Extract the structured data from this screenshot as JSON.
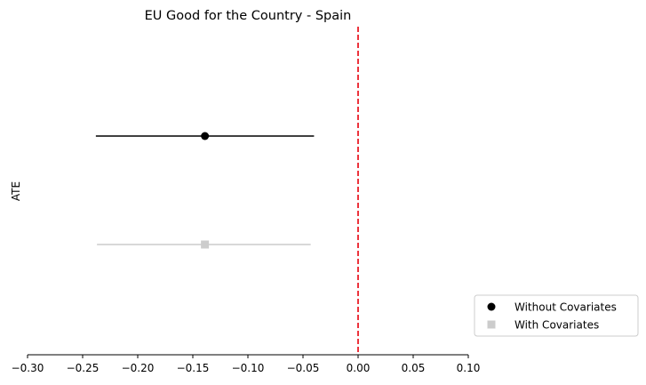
{
  "chart_data": {
    "type": "scatter",
    "title": "EU Good for the Country - Spain",
    "xlabel": "",
    "ylabel": "ATE",
    "xlim": [
      -0.3,
      0.1
    ],
    "xticks": [
      "−0.30",
      "−0.25",
      "−0.20",
      "−0.15",
      "−0.10",
      "−0.05",
      "0.00",
      "0.05",
      "0.10"
    ],
    "reference_line": {
      "x": 0.0,
      "color": "#e8000b",
      "style": "dashed"
    },
    "grid": false,
    "legend_position": "lower-right-outside",
    "series": [
      {
        "name": "Without Covariates",
        "marker": "circle",
        "color": "#000000",
        "estimate": -0.139,
        "ci_low": -0.238,
        "ci_high": -0.04
      },
      {
        "name": "With Covariates",
        "marker": "square",
        "color": "#cccccc",
        "estimate": -0.139,
        "ci_low": -0.237,
        "ci_high": -0.043
      }
    ]
  }
}
